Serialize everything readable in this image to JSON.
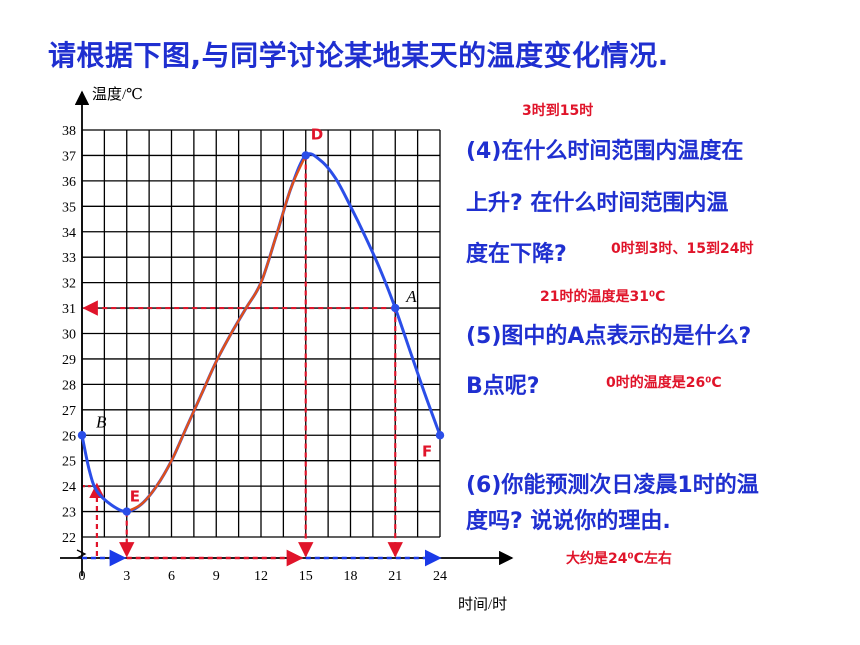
{
  "title": "请根据下图,与同学讨论某地某天的温度变化情况.",
  "colors": {
    "title": "#1f2fd0",
    "answer": "#e0142a",
    "curve_blue": "#2b4ee8",
    "curve_orange": "#e0501a",
    "dashed_red": "#e0142a",
    "dashed_blue": "#1a3ae8",
    "grid": "#000000"
  },
  "chart_data": {
    "type": "line",
    "xlabel": "时间/时",
    "ylabel": "温度/℃",
    "x_ticks": [
      0,
      3,
      6,
      9,
      12,
      15,
      18,
      21,
      24
    ],
    "y_ticks": [
      22,
      23,
      24,
      25,
      26,
      27,
      28,
      29,
      30,
      31,
      32,
      33,
      34,
      35,
      36,
      37,
      38
    ],
    "xlim": [
      0,
      24
    ],
    "ylim": [
      21.1,
      38
    ],
    "grid": true,
    "series": [
      {
        "color": "#2b4ee8",
        "points": [
          [
            0,
            26
          ],
          [
            0.5,
            24.6
          ],
          [
            1,
            23.8
          ],
          [
            2,
            23.25
          ],
          [
            3,
            23
          ],
          [
            4,
            23.3
          ],
          [
            5,
            24
          ],
          [
            6,
            25
          ],
          [
            7,
            26.3
          ],
          [
            8,
            27.6
          ],
          [
            9,
            28.9
          ],
          [
            10,
            30
          ],
          [
            11,
            31
          ],
          [
            12,
            32
          ],
          [
            13,
            33.8
          ],
          [
            14,
            35.7
          ],
          [
            15,
            37
          ],
          [
            16,
            36.8
          ],
          [
            17,
            36.1
          ],
          [
            18,
            35
          ],
          [
            19,
            33.8
          ],
          [
            20,
            32.5
          ],
          [
            21,
            31
          ],
          [
            22,
            29.3
          ],
          [
            23,
            27.6
          ],
          [
            24,
            26
          ]
        ]
      },
      {
        "color": "#e0501a",
        "points": [
          [
            3,
            23
          ],
          [
            4,
            23.3
          ],
          [
            5,
            24
          ],
          [
            6,
            25
          ],
          [
            7,
            26.3
          ],
          [
            8,
            27.6
          ],
          [
            9,
            28.9
          ],
          [
            10,
            30
          ],
          [
            11,
            31
          ],
          [
            12,
            32
          ],
          [
            13,
            33.8
          ],
          [
            14,
            35.7
          ],
          [
            15,
            37
          ]
        ]
      }
    ],
    "point_labels": [
      {
        "text": "B",
        "x": 0,
        "y": 26
      },
      {
        "text": "E",
        "x": 3,
        "y": 23
      },
      {
        "text": "D",
        "x": 15,
        "y": 37
      },
      {
        "text": "A",
        "x": 21,
        "y": 31
      },
      {
        "text": "F",
        "x": 24,
        "y": 26
      }
    ]
  },
  "questions": {
    "q4_line1": "(4)在什么时间范围内温度在",
    "q4_line2": "上升? 在什么时间范围内温",
    "q4_line3": "度在下降?",
    "q5_line1": "(5)图中的A点表示的是什么?",
    "q5_line2": "B点呢?",
    "q6_line1": "(6)你能预测次日凌晨1时的温",
    "q6_line2": "度吗? 说说你的理由."
  },
  "answers": {
    "rise": "3时到15时",
    "fall": "0时到3时、15到24时",
    "point_a": "21时的温度是31⁰C",
    "point_b": "0时的温度是26⁰C",
    "predict": "大约是24⁰C左右"
  }
}
